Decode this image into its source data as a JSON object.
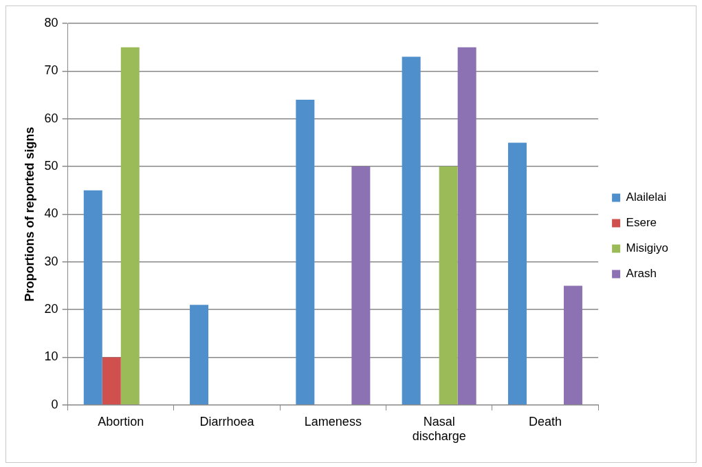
{
  "chart_data": {
    "type": "bar",
    "ylabel": "Proportions of reported signs",
    "categories": [
      "Abortion",
      "Diarrhoea",
      "Lameness",
      "Nasal discharge",
      "Death"
    ],
    "series": [
      {
        "name": "Alailelai",
        "color": "#4f8fcc",
        "values": [
          45,
          21,
          64,
          73,
          55
        ]
      },
      {
        "name": "Esere",
        "color": "#d0504d",
        "values": [
          10,
          0,
          0,
          0,
          0
        ]
      },
      {
        "name": "Misigiyo",
        "color": "#9bbb59",
        "values": [
          75,
          0,
          0,
          50,
          0
        ]
      },
      {
        "name": "Arash",
        "color": "#8c72b3",
        "values": [
          0,
          0,
          50,
          75,
          25
        ]
      }
    ],
    "ylim": [
      0,
      80
    ],
    "yticks": [
      0,
      10,
      20,
      30,
      40,
      50,
      60,
      70,
      80
    ],
    "grid": "y",
    "legend": "right"
  }
}
